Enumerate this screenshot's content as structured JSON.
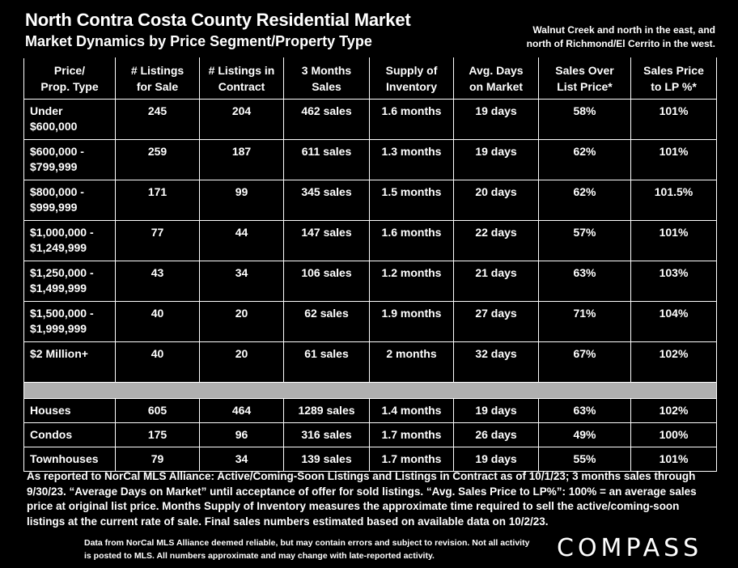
{
  "header": {
    "title": "North Contra Costa County Residential Market",
    "subtitle": "Market Dynamics by Price Segment/Property Type",
    "note_line1": "Walnut Creek and north in the east, and",
    "note_line2": "north of Richmond/El Cerrito in the west."
  },
  "columns": [
    {
      "l1": "Price/",
      "l2": "Prop. Type"
    },
    {
      "l1": "# Listings",
      "l2": "for Sale"
    },
    {
      "l1": "# Listings in",
      "l2": "Contract"
    },
    {
      "l1": "3 Months",
      "l2": "Sales"
    },
    {
      "l1": "Supply of",
      "l2": "Inventory"
    },
    {
      "l1": "Avg. Days",
      "l2": "on Market"
    },
    {
      "l1": "Sales Over",
      "l2": "List Price*"
    },
    {
      "l1": "Sales Price",
      "l2": "to LP %*"
    }
  ],
  "price_rows": [
    {
      "label1": "Under",
      "label2": "$600,000",
      "listings": "245",
      "contract": "204",
      "sales": "462 sales",
      "supply": "1.6 months",
      "days": "19 days",
      "over": "58%",
      "lp": "101%"
    },
    {
      "label1": "$600,000 -",
      "label2": "$799,999",
      "listings": "259",
      "contract": "187",
      "sales": "611 sales",
      "supply": "1.3 months",
      "days": "19 days",
      "over": "62%",
      "lp": "101%"
    },
    {
      "label1": "$800,000 -",
      "label2": "$999,999",
      "listings": "171",
      "contract": "99",
      "sales": "345 sales",
      "supply": "1.5 months",
      "days": "20 days",
      "over": "62%",
      "lp": "101.5%"
    },
    {
      "label1": "$1,000,000 -",
      "label2": "$1,249,999",
      "listings": "77",
      "contract": "44",
      "sales": "147 sales",
      "supply": "1.6 months",
      "days": "22 days",
      "over": "57%",
      "lp": "101%"
    },
    {
      "label1": "$1,250,000 -",
      "label2": "$1,499,999",
      "listings": "43",
      "contract": "34",
      "sales": "106 sales",
      "supply": "1.2 months",
      "days": "21 days",
      "over": "63%",
      "lp": "103%"
    },
    {
      "label1": "$1,500,000 -",
      "label2": "$1,999,999",
      "listings": "40",
      "contract": "20",
      "sales": "62 sales",
      "supply": "1.9 months",
      "days": "27 days",
      "over": "71%",
      "lp": "104%"
    },
    {
      "label1": "$2 Million+",
      "label2": "",
      "listings": "40",
      "contract": "20",
      "sales": "61 sales",
      "supply": "2 months",
      "days": "32 days",
      "over": "67%",
      "lp": "102%"
    }
  ],
  "type_rows": [
    {
      "label1": "Houses",
      "listings": "605",
      "contract": "464",
      "sales": "1289 sales",
      "supply": "1.4 months",
      "days": "19 days",
      "over": "63%",
      "lp": "102%"
    },
    {
      "label1": "Condos",
      "listings": "175",
      "contract": "96",
      "sales": "316 sales",
      "supply": "1.7 months",
      "days": "26 days",
      "over": "49%",
      "lp": "100%"
    },
    {
      "label1": "Townhouses",
      "listings": "79",
      "contract": "34",
      "sales": "139 sales",
      "supply": "1.7 months",
      "days": "19 days",
      "over": "55%",
      "lp": "101%"
    }
  ],
  "footer": {
    "text": "As reported to NorCal MLS Alliance: Active/Coming-Soon Listings and Listings in Contract as of 10/1/23; 3 months sales through 9/30/23. “Average Days on Market” until acceptance of offer for sold listings. “Avg. Sales Price to LP%”: 100% = an average sales price at original list price. Months Supply of Inventory measures the approximate time required to sell the active/coming-soon listings at the current rate of sale. Final sales numbers estimated based on available data on 10/2/23.",
    "fine": "Data from NorCal MLS Alliance deemed reliable, but may contain errors and subject to revision.  Not all activity is posted to MLS. All numbers approximate and may change with late-reported activity.",
    "logo": "COMPASS"
  }
}
